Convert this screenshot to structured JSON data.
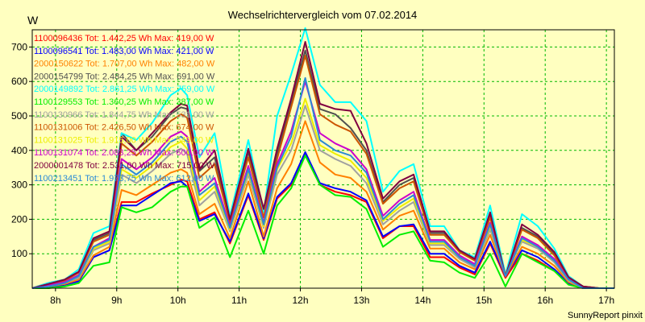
{
  "chart_data": {
    "type": "line",
    "title": "Wechselrichtervergleich vom 07.02.2014",
    "ylabel": "W",
    "credit": "SunnyReport pinxit",
    "xlim": [
      7.62,
      17.13
    ],
    "ylim": [
      0,
      750
    ],
    "x_ticks": [
      8,
      9,
      10,
      11,
      12,
      13,
      14,
      15,
      16,
      17
    ],
    "x_tick_labels": [
      "8h",
      "9h",
      "10h",
      "11h",
      "12h",
      "13h",
      "14h",
      "15h",
      "16h",
      "17h"
    ],
    "y_ticks": [
      100,
      200,
      300,
      400,
      500,
      600,
      700
    ],
    "y_tick_labels": [
      "100",
      "200",
      "300",
      "400",
      "500",
      "600",
      "700"
    ],
    "grid": true,
    "legend_position": "top-left",
    "x": [
      7.62,
      7.88,
      8.15,
      8.38,
      8.62,
      8.88,
      9.08,
      9.32,
      9.58,
      9.88,
      10.05,
      10.15,
      10.35,
      10.6,
      10.85,
      11.15,
      11.4,
      11.62,
      11.85,
      12.08,
      12.32,
      12.57,
      12.82,
      13.08,
      13.35,
      13.62,
      13.85,
      14.12,
      14.35,
      14.6,
      14.85,
      15.1,
      15.35,
      15.62,
      15.88,
      16.15,
      16.38,
      16.62,
      16.88,
      17.13
    ],
    "series": [
      {
        "name": "1100096436",
        "label": "1100096436 Tot: 1.442,25 Wh Max: 419,00 W",
        "color": "#ff0000",
        "values": [
          0,
          0,
          10,
          20,
          90,
          110,
          250,
          250,
          275,
          300,
          315,
          310,
          200,
          220,
          130,
          270,
          140,
          260,
          300,
          390,
          300,
          280,
          270,
          250,
          145,
          180,
          180,
          90,
          90,
          60,
          40,
          130,
          30,
          100,
          80,
          50,
          15,
          0,
          0,
          0
        ]
      },
      {
        "name": "1100096541",
        "label": "1100096541 Tot: 1.483,00 Wh Max: 421,00 W",
        "color": "#0000ff",
        "values": [
          0,
          0,
          10,
          20,
          90,
          110,
          240,
          240,
          270,
          305,
          310,
          295,
          195,
          215,
          135,
          275,
          145,
          265,
          305,
          395,
          305,
          290,
          280,
          255,
          150,
          180,
          185,
          100,
          100,
          65,
          45,
          135,
          35,
          110,
          90,
          55,
          15,
          0,
          0,
          0
        ]
      },
      {
        "name": "2000150622",
        "label": "2000150622 Tot: 1.707,00 Wh Max: 482,00 W",
        "color": "#ff8000",
        "values": [
          0,
          5,
          12,
          25,
          95,
          120,
          285,
          270,
          300,
          335,
          345,
          335,
          215,
          245,
          145,
          310,
          150,
          290,
          360,
          485,
          365,
          330,
          320,
          280,
          170,
          210,
          225,
          115,
          115,
          75,
          55,
          155,
          35,
          120,
          100,
          65,
          18,
          0,
          0,
          0
        ]
      },
      {
        "name": "2000154799",
        "label": "2000154799 Tot: 2.484,25 Wh Max: 691,00 W",
        "color": "#505050",
        "values": [
          0,
          15,
          25,
          45,
          140,
          160,
          450,
          400,
          440,
          505,
          525,
          520,
          340,
          380,
          200,
          395,
          225,
          390,
          540,
          690,
          520,
          505,
          465,
          400,
          250,
          300,
          320,
          160,
          160,
          110,
          85,
          215,
          35,
          175,
          150,
          100,
          30,
          5,
          0,
          0
        ]
      },
      {
        "name": "2000149892",
        "label": "2000149892 Tot: 2.861,25 Wh Max: 759,00 W",
        "color": "#00ffff",
        "values": [
          0,
          15,
          25,
          55,
          160,
          180,
          450,
          430,
          480,
          560,
          580,
          560,
          380,
          450,
          210,
          430,
          220,
          500,
          620,
          755,
          590,
          540,
          540,
          485,
          280,
          340,
          360,
          180,
          180,
          110,
          90,
          240,
          40,
          215,
          180,
          115,
          35,
          5,
          0,
          0
        ]
      },
      {
        "name": "1100129553",
        "label": "1100129553 Tot: 1.360,25 Wh Max: 387,00 W",
        "color": "#00ee00",
        "values": [
          0,
          0,
          5,
          15,
          65,
          75,
          235,
          220,
          235,
          280,
          295,
          295,
          175,
          205,
          90,
          225,
          100,
          240,
          290,
          385,
          300,
          270,
          265,
          230,
          120,
          155,
          165,
          80,
          75,
          45,
          30,
          100,
          5,
          100,
          75,
          50,
          10,
          0,
          0,
          0
        ]
      },
      {
        "name": "1100130966",
        "label": "1100130966 Tot: 1.844,75 Wh Max: 531,00 W",
        "color": "#a0a0a0",
        "values": [
          0,
          5,
          15,
          30,
          110,
          130,
          330,
          305,
          340,
          390,
          405,
          390,
          240,
          280,
          165,
          330,
          175,
          330,
          400,
          530,
          400,
          375,
          355,
          305,
          185,
          225,
          250,
          125,
          125,
          85,
          60,
          170,
          40,
          135,
          115,
          75,
          22,
          0,
          0,
          0
        ]
      },
      {
        "name": "1100131006",
        "label": "1100131006 Tot: 2.426,50 Wh Max: 674,00 W",
        "color": "#cc5500",
        "values": [
          0,
          10,
          22,
          45,
          135,
          155,
          420,
          385,
          425,
          485,
          505,
          495,
          320,
          360,
          190,
          380,
          205,
          375,
          525,
          675,
          505,
          475,
          455,
          390,
          245,
          290,
          310,
          155,
          155,
          105,
          80,
          205,
          35,
          170,
          145,
          95,
          28,
          5,
          0,
          0
        ]
      },
      {
        "name": "1100131025",
        "label": "1100131025 Tot: 1.915,00 Wh Max: 549,00 W",
        "color": "#eeee00",
        "values": [
          0,
          5,
          15,
          35,
          115,
          135,
          345,
          320,
          355,
          410,
          425,
          405,
          255,
          295,
          170,
          340,
          180,
          345,
          420,
          550,
          415,
          390,
          370,
          320,
          195,
          235,
          260,
          130,
          130,
          90,
          65,
          180,
          40,
          140,
          120,
          80,
          24,
          0,
          0,
          0
        ]
      },
      {
        "name": "1100131074",
        "label": "1100131074 Tot: 2.083,25 Wh Max: 600,00 W",
        "color": "#cc00cc",
        "values": [
          0,
          8,
          18,
          38,
          120,
          145,
          375,
          345,
          380,
          440,
          455,
          440,
          280,
          320,
          180,
          355,
          190,
          360,
          455,
          600,
          450,
          420,
          400,
          345,
          210,
          255,
          280,
          140,
          140,
          95,
          70,
          190,
          35,
          150,
          125,
          85,
          26,
          0,
          0,
          0
        ]
      },
      {
        "name": "2000001478",
        "label": "2000001478 Tot: 2.531,00 Wh Max: 715,00 W",
        "color": "#800040",
        "values": [
          0,
          12,
          25,
          48,
          145,
          165,
          440,
          400,
          450,
          510,
          535,
          530,
          345,
          400,
          200,
          405,
          230,
          405,
          550,
          715,
          535,
          520,
          515,
          420,
          260,
          310,
          330,
          165,
          165,
          110,
          85,
          220,
          35,
          185,
          155,
          105,
          32,
          5,
          0,
          0
        ]
      },
      {
        "name": "1100213451",
        "label": "1100213451 Tot: 1.973,75 Wh Max: 612,00 W",
        "color": "#2a8ad6",
        "values": [
          0,
          5,
          15,
          35,
          120,
          140,
          360,
          330,
          365,
          425,
          440,
          425,
          270,
          305,
          175,
          345,
          185,
          350,
          440,
          610,
          430,
          400,
          385,
          335,
          200,
          245,
          270,
          135,
          135,
          90,
          65,
          185,
          35,
          145,
          120,
          80,
          25,
          0,
          0,
          0
        ]
      }
    ]
  }
}
